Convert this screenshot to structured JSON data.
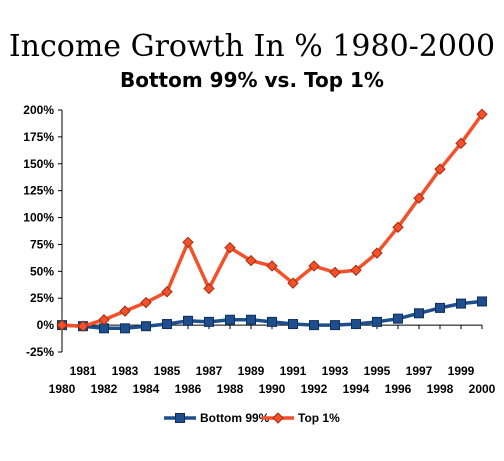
{
  "chart_data": {
    "type": "line",
    "title": "Income Growth In % 1980-2000",
    "subtitle": "Bottom 99% vs. Top 1%",
    "xlabel": "",
    "ylabel": "",
    "x": [
      "1980",
      "1981",
      "1982",
      "1983",
      "1984",
      "1985",
      "1986",
      "1987",
      "1988",
      "1989",
      "1990",
      "1991",
      "1992",
      "1993",
      "1994",
      "1995",
      "1996",
      "1997",
      "1998",
      "1999",
      "2000"
    ],
    "y_ticks": [
      "-25%",
      "0%",
      "25%",
      "50%",
      "75%",
      "100%",
      "125%",
      "150%",
      "175%",
      "200%"
    ],
    "ylim": [
      -25,
      200
    ],
    "grid": false,
    "legend_position": "bottom",
    "series": [
      {
        "name": "Bottom 99%",
        "color": "#1f4e8c",
        "marker": "square",
        "values": [
          0,
          -1,
          -3,
          -3,
          -1,
          1,
          4,
          3,
          5,
          5,
          3,
          1,
          0,
          0,
          1,
          3,
          6,
          11,
          16,
          20,
          22
        ]
      },
      {
        "name": "Top 1%",
        "color": "#f4502a",
        "marker": "diamond",
        "values": [
          0,
          -1,
          5,
          13,
          21,
          31,
          77,
          34,
          72,
          60,
          55,
          39,
          55,
          49,
          51,
          67,
          91,
          118,
          145,
          169,
          196
        ]
      }
    ]
  }
}
